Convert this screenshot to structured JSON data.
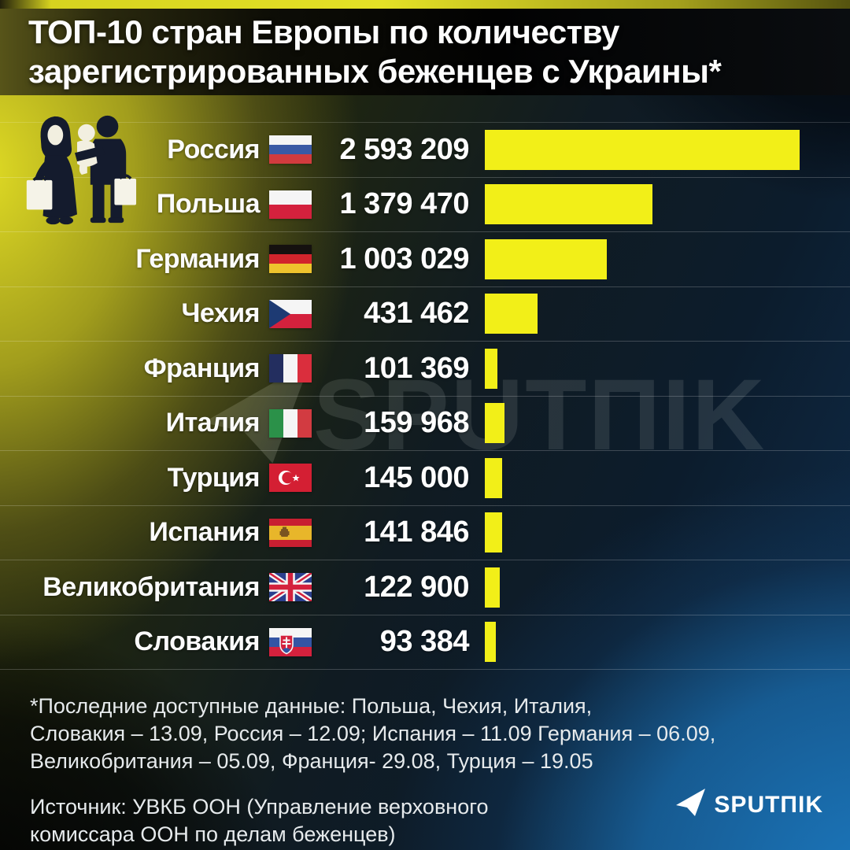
{
  "header": {
    "title_line1": "ТОП-10 стран Европы по количеству",
    "title_line2": "зарегистрированных беженцев с Украины*"
  },
  "chart_data": {
    "type": "bar",
    "orientation": "horizontal",
    "title": "ТОП-10 стран Европы по количеству зарегистрированных беженцев с Украины*",
    "bar_color": "#f2ef18",
    "axis": {
      "min": 0,
      "max": 2593209
    },
    "legend": "none",
    "grid": "row-separators-only",
    "rows": [
      {
        "country": "Россия",
        "flag": "russia",
        "value": 2593209,
        "display_value": "2 593 209"
      },
      {
        "country": "Польша",
        "flag": "poland",
        "value": 1379470,
        "display_value": "1 379 470"
      },
      {
        "country": "Германия",
        "flag": "germany",
        "value": 1003029,
        "display_value": "1 003 029"
      },
      {
        "country": "Чехия",
        "flag": "czechia",
        "value": 431462,
        "display_value": "431 462"
      },
      {
        "country": "Франция",
        "flag": "france",
        "value": 101369,
        "display_value": "101 369"
      },
      {
        "country": "Италия",
        "flag": "italy",
        "value": 159968,
        "display_value": "159 968"
      },
      {
        "country": "Турция",
        "flag": "turkey",
        "value": 145000,
        "display_value": "145 000"
      },
      {
        "country": "Испания",
        "flag": "spain",
        "value": 141846,
        "display_value": "141 846"
      },
      {
        "country": "Великобритания",
        "flag": "uk",
        "value": 122900,
        "display_value": "122 900"
      },
      {
        "country": "Словакия",
        "flag": "slovakia",
        "value": 93384,
        "display_value": "93 384"
      }
    ]
  },
  "footnote": {
    "line1": "*Последние доступные данные: Польша, Чехия, Италия,",
    "line2": "Словакия – 13.09, Россия – 12.09; Испания – 11.09 Германия – 06.09,",
    "line3": "Великобритания – 05.09, Франция- 29.08, Турция – 19.05"
  },
  "source": {
    "line1": "Источник: УВКБ ООН (Управление верховного",
    "line2": "комиссара ООН по делам беженцев)"
  },
  "branding": {
    "logo_text": "SPUTПIK",
    "watermark_text": "SPUTПIK"
  },
  "colors": {
    "bar": "#f2ef18",
    "accent_yellow": "#d8d520",
    "accent_blue": "#1b76bb",
    "background_dark": "#0d1420"
  }
}
